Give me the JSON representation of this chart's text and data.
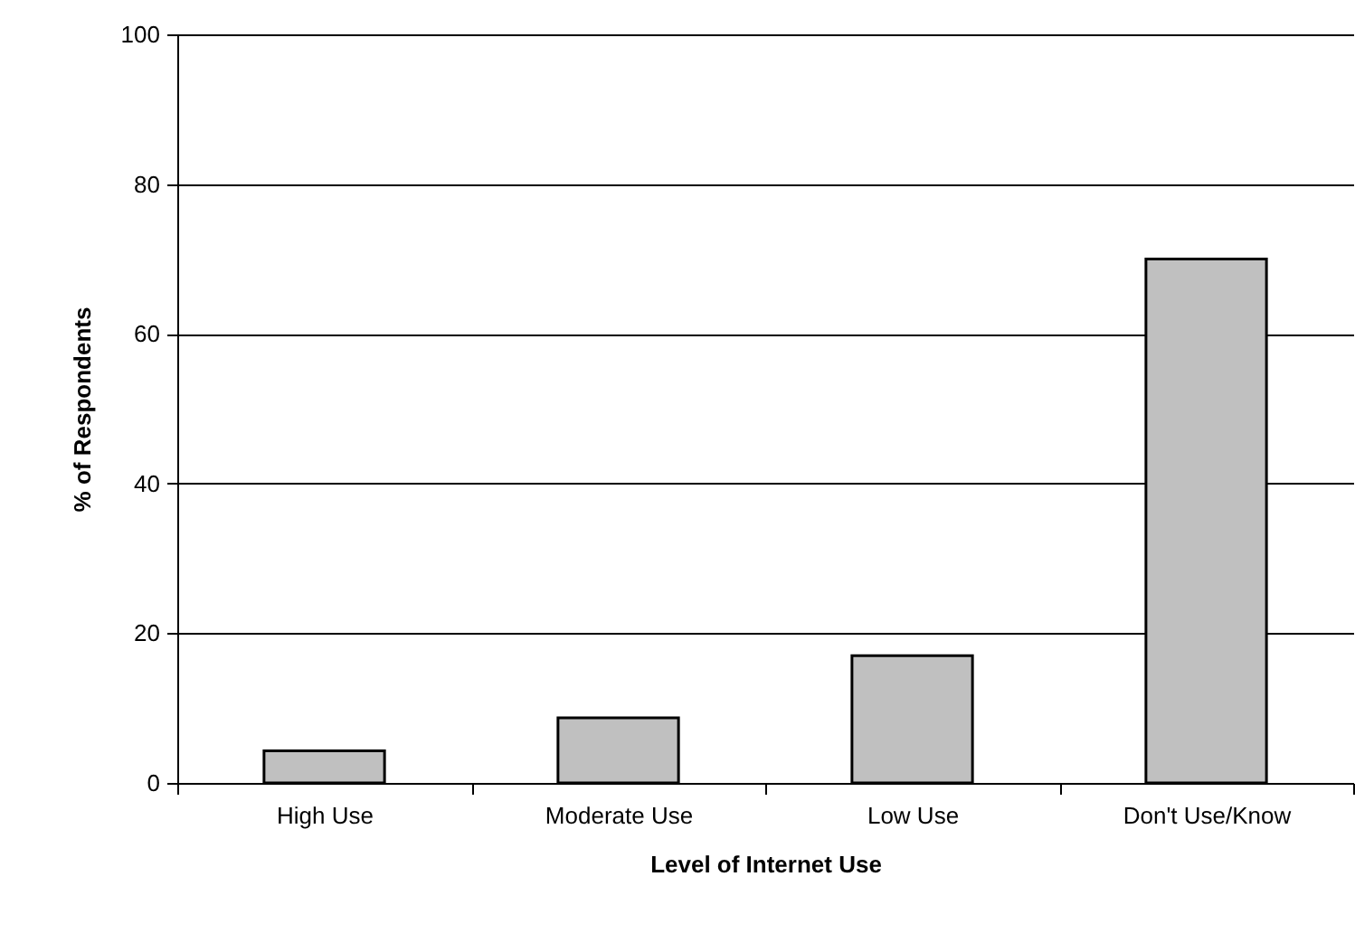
{
  "chart_data": {
    "type": "bar",
    "xlabel": "Level of Internet Use",
    "ylabel": "% of Respondents",
    "categories": [
      "High Use",
      "Moderate Use",
      "Low  Use",
      "Don't Use/Know"
    ],
    "values": [
      4.3,
      8.7,
      17,
      70
    ],
    "color": "#c0c0c0",
    "ylim": [
      0,
      100
    ],
    "yticks": [
      0,
      20,
      40,
      60,
      80,
      100
    ],
    "grid": "y"
  }
}
